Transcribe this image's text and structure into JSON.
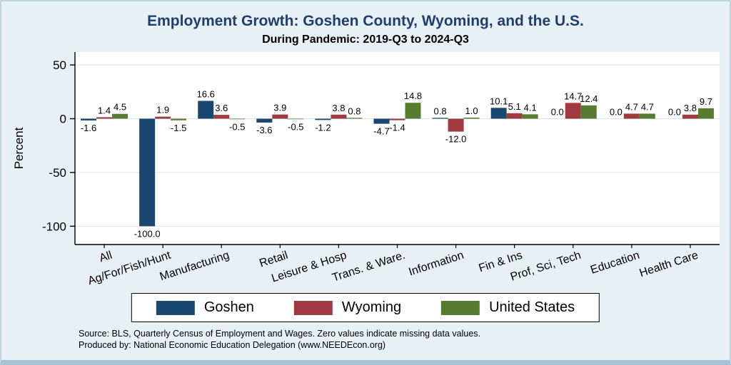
{
  "title": "Employment Growth: Goshen County, Wyoming, and the U.S.",
  "subtitle": "During Pandemic: 2019-Q3 to 2024-Q3",
  "colors": {
    "background": "#e7f0f5",
    "plot_background": "#ffffff",
    "grid": "#d4e4ee",
    "axis": "#000000",
    "title_text": "#1f3d6d",
    "goshen": "#1a476f",
    "wyoming": "#9e3a40",
    "united_states": "#587c2f"
  },
  "chart_data": {
    "type": "bar",
    "title": "Employment Growth: Goshen County, Wyoming, and the U.S.",
    "subtitle": "During Pandemic: 2019-Q3 to 2024-Q3",
    "ylabel": "Percent",
    "xlabel": "",
    "categories": [
      "All",
      "Ag/For/Fish/Hunt",
      "Manufacturing",
      "Retail",
      "Leisure & Hosp",
      "Trans. & Ware.",
      "Information",
      "Fin & Ins",
      "Prof, Sci, Tech",
      "Education",
      "Health Care"
    ],
    "series": [
      {
        "name": "Goshen",
        "color": "#1a476f",
        "values": [
          -1.6,
          -100.0,
          16.6,
          -3.6,
          -1.2,
          -4.7,
          0.8,
          10.1,
          0.0,
          0.0,
          0.0
        ]
      },
      {
        "name": "Wyoming",
        "color": "#9e3a40",
        "values": [
          1.4,
          1.9,
          3.6,
          3.9,
          3.8,
          -1.4,
          -12.0,
          5.1,
          14.7,
          4.7,
          3.8
        ]
      },
      {
        "name": "United States",
        "color": "#587c2f",
        "values": [
          4.5,
          -1.5,
          -0.5,
          -0.5,
          0.8,
          14.8,
          1.0,
          4.1,
          12.4,
          4.7,
          9.7
        ]
      }
    ],
    "yticks": [
      50,
      0,
      -50,
      -100
    ],
    "ylim": [
      -117,
      62
    ],
    "grid": true,
    "legend_position": "bottom",
    "value_label_decimals": 1
  },
  "footnotes": [
    "Source: BLS, Quarterly Census of Employment and Wages. Zero values indicate missing data values.",
    "Produced by: National Economic Education Delegation (www.NEEDEcon.org)"
  ]
}
